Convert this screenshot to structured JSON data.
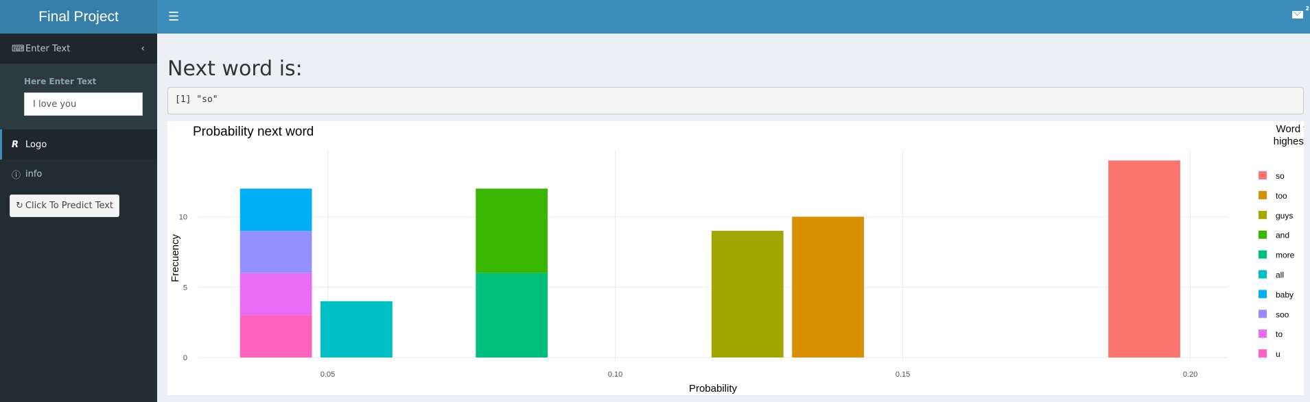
{
  "header": {
    "title": "Final Project",
    "menu_icon": "hamburger-icon",
    "mail_icon": "envelope-icon",
    "mail_badge": "2"
  },
  "sidebar": {
    "section": {
      "label": "Enter Text",
      "icon": "keyboard-icon"
    },
    "input": {
      "label": "Here Enter Text",
      "value": "I love you"
    },
    "items": [
      {
        "label": "Logo",
        "icon": "r-logo-icon",
        "active": true
      },
      {
        "label": "info",
        "icon": "info-circle-icon"
      }
    ],
    "button": {
      "label": "Click To Predict Text",
      "icon": "refresh-icon"
    }
  },
  "main": {
    "heading": "Next word is:",
    "output": "[1] \"so\""
  },
  "chart_data": {
    "type": "bar",
    "title": "Probability next word",
    "xlabel": "Probability",
    "ylabel": "Frecuency",
    "xlim": [
      0.0275,
      0.2065
    ],
    "ylim": [
      0,
      14.5
    ],
    "xticks": [
      "0.05",
      "0.10",
      "0.15",
      "0.20"
    ],
    "yticks": [
      "0",
      "5",
      "10"
    ],
    "grid": true,
    "stacked": true,
    "bar_width": 0.0125,
    "legend": {
      "title_lines": [
        "Word fr",
        "highest t"
      ],
      "placement": "right"
    },
    "series": [
      {
        "name": "so",
        "color": "#F8766D",
        "x": 0.192,
        "value": 14
      },
      {
        "name": "too",
        "color": "#D89000",
        "x": 0.137,
        "value": 10
      },
      {
        "name": "guys",
        "color": "#A3A500",
        "x": 0.123,
        "value": 9
      },
      {
        "name": "and",
        "color": "#39B600",
        "x": 0.082,
        "value": 6
      },
      {
        "name": "more",
        "color": "#00BF7D",
        "x": 0.082,
        "value": 6
      },
      {
        "name": "all",
        "color": "#00BFC4",
        "x": 0.055,
        "value": 4
      },
      {
        "name": "baby",
        "color": "#00B0F6",
        "x": 0.041,
        "value": 3
      },
      {
        "name": "soo",
        "color": "#9590FF",
        "x": 0.041,
        "value": 3
      },
      {
        "name": "to",
        "color": "#E76BF3",
        "x": 0.041,
        "value": 3
      },
      {
        "name": "u",
        "color": "#FF62BC",
        "x": 0.041,
        "value": 3
      }
    ]
  }
}
